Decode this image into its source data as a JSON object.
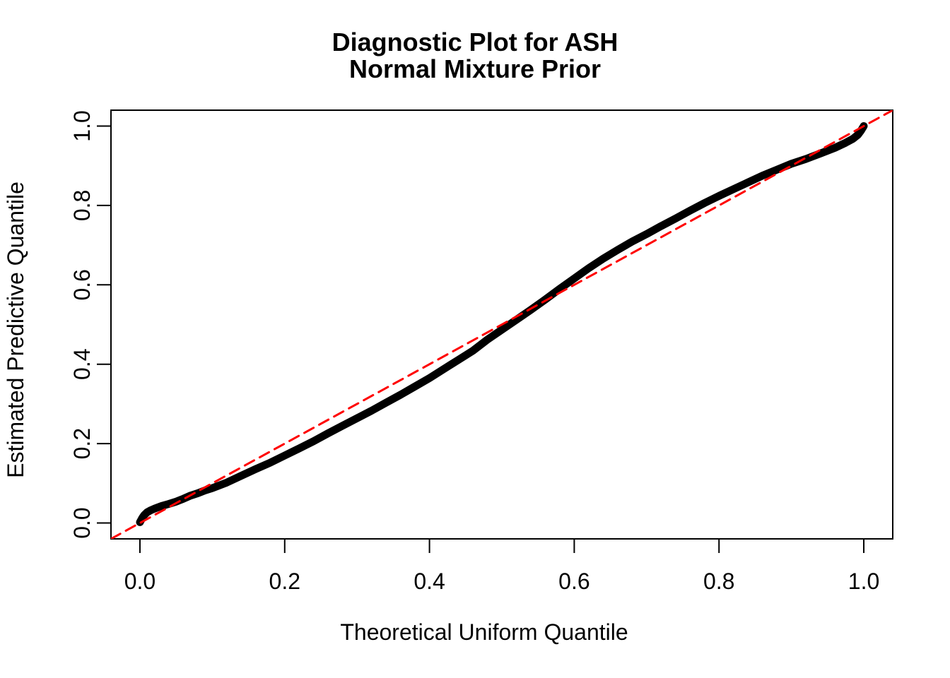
{
  "title": {
    "line1": "Diagnostic Plot for ASH",
    "line2": "Normal Mixture Prior"
  },
  "axes": {
    "xlabel": "Theoretical Uniform Quantile",
    "ylabel": "Estimated Predictive Quantile",
    "x_ticks": [
      "0.0",
      "0.2",
      "0.4",
      "0.6",
      "0.8",
      "1.0"
    ],
    "y_ticks": [
      "0.0",
      "0.2",
      "0.4",
      "0.6",
      "0.8",
      "1.0"
    ]
  },
  "colors": {
    "curve": "#000000",
    "reference": "#FF0000",
    "frame": "#000000",
    "background": "#FFFFFF"
  },
  "chart_data": {
    "type": "line",
    "title": "Diagnostic Plot for ASH\nNormal Mixture Prior",
    "xlabel": "Theoretical Uniform Quantile",
    "ylabel": "Estimated Predictive Quantile",
    "xlim": [
      -0.04,
      1.04
    ],
    "ylim": [
      -0.04,
      1.04
    ],
    "x_tick_values": [
      0.0,
      0.2,
      0.4,
      0.6,
      0.8,
      1.0
    ],
    "y_tick_values": [
      0.0,
      0.2,
      0.4,
      0.6,
      0.8,
      1.0
    ],
    "grid": false,
    "legend": null,
    "series": [
      {
        "name": "estimated-predictive-quantile-curve",
        "type": "line",
        "color": "#000000",
        "line_width": 11,
        "style": "solid",
        "points": [
          [
            0.0,
            0.002
          ],
          [
            0.003,
            0.012
          ],
          [
            0.006,
            0.02
          ],
          [
            0.01,
            0.027
          ],
          [
            0.015,
            0.032
          ],
          [
            0.02,
            0.036
          ],
          [
            0.03,
            0.043
          ],
          [
            0.04,
            0.048
          ],
          [
            0.05,
            0.054
          ],
          [
            0.06,
            0.061
          ],
          [
            0.07,
            0.069
          ],
          [
            0.08,
            0.075
          ],
          [
            0.09,
            0.082
          ],
          [
            0.1,
            0.088
          ],
          [
            0.12,
            0.102
          ],
          [
            0.14,
            0.119
          ],
          [
            0.16,
            0.136
          ],
          [
            0.18,
            0.152
          ],
          [
            0.2,
            0.17
          ],
          [
            0.22,
            0.188
          ],
          [
            0.24,
            0.206
          ],
          [
            0.26,
            0.226
          ],
          [
            0.28,
            0.245
          ],
          [
            0.3,
            0.264
          ],
          [
            0.32,
            0.283
          ],
          [
            0.34,
            0.303
          ],
          [
            0.36,
            0.323
          ],
          [
            0.38,
            0.344
          ],
          [
            0.4,
            0.365
          ],
          [
            0.42,
            0.388
          ],
          [
            0.44,
            0.411
          ],
          [
            0.46,
            0.434
          ],
          [
            0.48,
            0.462
          ],
          [
            0.5,
            0.487
          ],
          [
            0.52,
            0.512
          ],
          [
            0.54,
            0.537
          ],
          [
            0.56,
            0.563
          ],
          [
            0.58,
            0.59
          ],
          [
            0.6,
            0.616
          ],
          [
            0.62,
            0.642
          ],
          [
            0.64,
            0.666
          ],
          [
            0.66,
            0.688
          ],
          [
            0.68,
            0.709
          ],
          [
            0.7,
            0.728
          ],
          [
            0.72,
            0.748
          ],
          [
            0.74,
            0.767
          ],
          [
            0.76,
            0.787
          ],
          [
            0.78,
            0.806
          ],
          [
            0.8,
            0.824
          ],
          [
            0.82,
            0.841
          ],
          [
            0.84,
            0.858
          ],
          [
            0.86,
            0.875
          ],
          [
            0.88,
            0.89
          ],
          [
            0.9,
            0.905
          ],
          [
            0.92,
            0.917
          ],
          [
            0.94,
            0.931
          ],
          [
            0.96,
            0.945
          ],
          [
            0.975,
            0.958
          ],
          [
            0.985,
            0.968
          ],
          [
            0.992,
            0.978
          ],
          [
            0.996,
            0.988
          ],
          [
            1.0,
            1.0
          ]
        ]
      },
      {
        "name": "diagonal-reference-line",
        "type": "line",
        "color": "#FF0000",
        "line_width": 3,
        "style": "dashed",
        "points": [
          [
            -0.04,
            -0.04
          ],
          [
            1.04,
            1.04
          ]
        ]
      }
    ]
  }
}
